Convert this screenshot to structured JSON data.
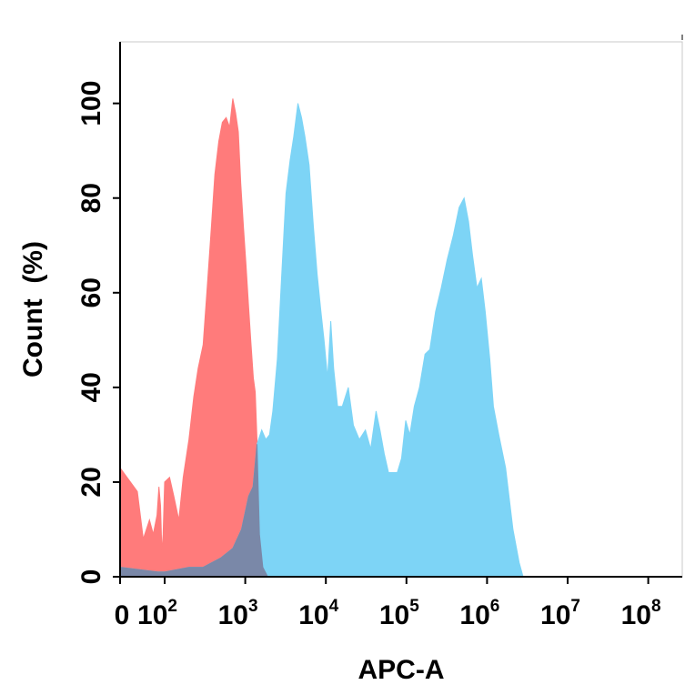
{
  "chart_data": {
    "type": "area",
    "title": "",
    "xlabel": "APC-A",
    "ylabel": "Count  (%)",
    "x_scale": "biexponential",
    "xlim": [
      0,
      100000000
    ],
    "ylim": [
      0,
      113
    ],
    "x_ticks": [
      {
        "value": 0,
        "label": "0",
        "exp": ""
      },
      {
        "value": 100,
        "label": "10",
        "exp": "2"
      },
      {
        "value": 1000,
        "label": "10",
        "exp": "3"
      },
      {
        "value": 10000,
        "label": "10",
        "exp": "4"
      },
      {
        "value": 100000,
        "label": "10",
        "exp": "5"
      },
      {
        "value": 1000000,
        "label": "10",
        "exp": "6"
      },
      {
        "value": 10000000,
        "label": "10",
        "exp": "7"
      },
      {
        "value": 100000000,
        "label": "10",
        "exp": "8"
      }
    ],
    "y_ticks": [
      0,
      20,
      40,
      60,
      80,
      100
    ],
    "y_tick_labels": [
      "0",
      "20",
      "40",
      "60",
      "80",
      "100"
    ],
    "grid": false,
    "legend": "none",
    "series": [
      {
        "color": "#ff7b7b",
        "points": [
          [
            0,
            23
          ],
          [
            5,
            18
          ],
          [
            10,
            8
          ],
          [
            20,
            12
          ],
          [
            30,
            9
          ],
          [
            45,
            13
          ],
          [
            55,
            19
          ],
          [
            65,
            15
          ],
          [
            75,
            5
          ],
          [
            85,
            9
          ],
          [
            100,
            20
          ],
          [
            115,
            21
          ],
          [
            130,
            17
          ],
          [
            150,
            12
          ],
          [
            170,
            21
          ],
          [
            200,
            29
          ],
          [
            230,
            38
          ],
          [
            260,
            44
          ],
          [
            300,
            49
          ],
          [
            340,
            62
          ],
          [
            380,
            74
          ],
          [
            420,
            85
          ],
          [
            470,
            92
          ],
          [
            520,
            96
          ],
          [
            580,
            97
          ],
          [
            640,
            95
          ],
          [
            700,
            101
          ],
          [
            760,
            98
          ],
          [
            820,
            94
          ],
          [
            880,
            83
          ],
          [
            950,
            74
          ],
          [
            1020,
            66
          ],
          [
            1100,
            57
          ],
          [
            1180,
            49
          ],
          [
            1260,
            42
          ],
          [
            1330,
            39
          ],
          [
            1400,
            29
          ],
          [
            1500,
            9
          ],
          [
            1650,
            2
          ],
          [
            1900,
            0
          ]
        ]
      },
      {
        "color": "#7dd4f6",
        "points": [
          [
            0,
            2
          ],
          [
            50,
            1
          ],
          [
            100,
            1
          ],
          [
            200,
            2
          ],
          [
            300,
            2
          ],
          [
            500,
            4
          ],
          [
            700,
            6
          ],
          [
            900,
            10
          ],
          [
            1100,
            17
          ],
          [
            1250,
            19
          ],
          [
            1400,
            28
          ],
          [
            1600,
            31
          ],
          [
            1800,
            29
          ],
          [
            2000,
            30
          ],
          [
            2200,
            35
          ],
          [
            2500,
            46
          ],
          [
            2800,
            62
          ],
          [
            3200,
            81
          ],
          [
            3600,
            88
          ],
          [
            4000,
            93
          ],
          [
            4500,
            100
          ],
          [
            5000,
            97
          ],
          [
            5500,
            93
          ],
          [
            6200,
            87
          ],
          [
            7000,
            74
          ],
          [
            7800,
            64
          ],
          [
            8700,
            56
          ],
          [
            9500,
            50
          ],
          [
            10500,
            42
          ],
          [
            11500,
            54
          ],
          [
            12500,
            44
          ],
          [
            14000,
            36
          ],
          [
            16000,
            36
          ],
          [
            19000,
            40
          ],
          [
            22000,
            32
          ],
          [
            26000,
            29
          ],
          [
            31000,
            31
          ],
          [
            36000,
            27
          ],
          [
            42000,
            35
          ],
          [
            47000,
            31
          ],
          [
            53000,
            26
          ],
          [
            60000,
            22
          ],
          [
            68000,
            22
          ],
          [
            77000,
            22
          ],
          [
            87000,
            25
          ],
          [
            98000,
            33
          ],
          [
            110000,
            30
          ],
          [
            125000,
            36
          ],
          [
            145000,
            40
          ],
          [
            170000,
            47
          ],
          [
            195000,
            48
          ],
          [
            230000,
            56
          ],
          [
            270000,
            61
          ],
          [
            320000,
            67
          ],
          [
            380000,
            72
          ],
          [
            450000,
            78
          ],
          [
            520000,
            80
          ],
          [
            590000,
            75
          ],
          [
            660000,
            68
          ],
          [
            750000,
            61
          ],
          [
            850000,
            63
          ],
          [
            950000,
            56
          ],
          [
            1080000,
            46
          ],
          [
            1200000,
            36
          ],
          [
            1400000,
            30
          ],
          [
            1700000,
            23
          ],
          [
            2100000,
            10
          ],
          [
            2500000,
            3
          ],
          [
            2800000,
            0
          ]
        ]
      },
      {
        "color": "#7a88a8",
        "points": [
          [
            0,
            2
          ],
          [
            50,
            1
          ],
          [
            100,
            1
          ],
          [
            200,
            2
          ],
          [
            300,
            2
          ],
          [
            500,
            4
          ],
          [
            700,
            6
          ],
          [
            900,
            10
          ],
          [
            1100,
            17
          ],
          [
            1250,
            19
          ],
          [
            1400,
            28
          ],
          [
            1500,
            9
          ],
          [
            1650,
            2
          ],
          [
            1900,
            0
          ]
        ]
      }
    ]
  }
}
